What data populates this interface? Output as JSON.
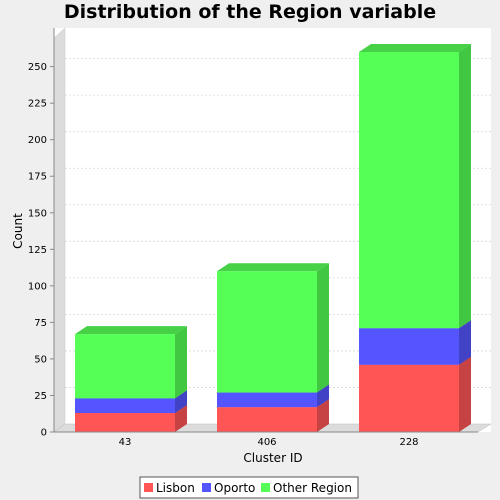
{
  "chart_data": {
    "type": "bar",
    "stacked": true,
    "three_d": true,
    "title": "Distribution of the Region variable",
    "xlabel": "Cluster ID",
    "ylabel": "Count",
    "categories": [
      "43",
      "406",
      "228"
    ],
    "series": [
      {
        "name": "Lisbon",
        "color": "#ff5555",
        "values": [
          13,
          17,
          46
        ]
      },
      {
        "name": "Oporto",
        "color": "#5555ff",
        "values": [
          10,
          10,
          25
        ]
      },
      {
        "name": "Other Region",
        "color": "#55ff55",
        "values": [
          44,
          83,
          189
        ]
      }
    ],
    "ylim": [
      0,
      265
    ],
    "yticks": [
      0,
      25,
      50,
      75,
      100,
      125,
      150,
      175,
      200,
      225,
      250
    ],
    "grid": true,
    "legend_position": "bottom"
  }
}
